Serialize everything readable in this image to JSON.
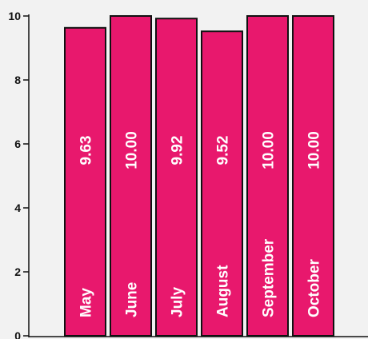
{
  "chart_data": {
    "type": "bar",
    "categories": [
      "May",
      "June",
      "July",
      "August",
      "September",
      "October"
    ],
    "values": [
      9.63,
      10.0,
      9.92,
      9.52,
      10.0,
      10.0
    ],
    "value_labels": [
      "9.63",
      "10.00",
      "9.92",
      "9.52",
      "10.00",
      "10.00"
    ],
    "yticks": [
      "0",
      "2",
      "4",
      "6",
      "8",
      "10"
    ],
    "ylim": [
      0,
      10
    ],
    "grid": false,
    "colors": {
      "bar": "#e8186d",
      "edge": "#111111",
      "text": "#ffffff"
    }
  }
}
